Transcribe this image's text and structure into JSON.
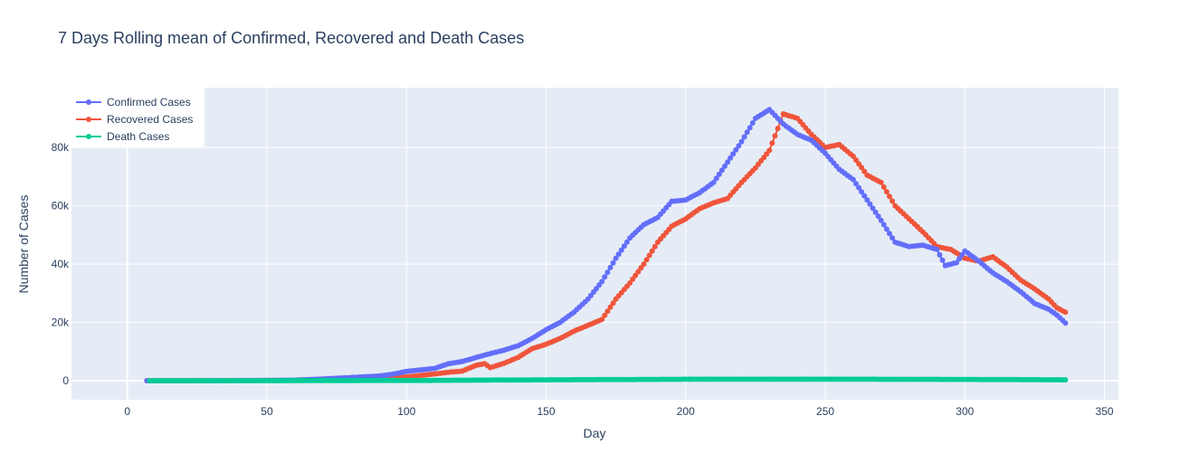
{
  "chart_data": {
    "type": "line",
    "title": "7 Days Rolling mean of Confirmed, Recovered and Death Cases",
    "xlabel": "Day",
    "ylabel": "Number of Cases",
    "xlim": [
      -20,
      355
    ],
    "ylim": [
      -6500,
      100500
    ],
    "x_ticks": [
      0,
      50,
      100,
      150,
      200,
      250,
      300,
      350
    ],
    "x_tick_labels": [
      "0",
      "50",
      "100",
      "150",
      "200",
      "250",
      "300",
      "350"
    ],
    "y_ticks": [
      0,
      20000,
      40000,
      60000,
      80000
    ],
    "y_tick_labels": [
      "0",
      "20k",
      "40k",
      "60k",
      "80k"
    ],
    "grid": true,
    "legend_position": "top-left",
    "background": "#e5ecf6",
    "series": [
      {
        "name": "Confirmed Cases",
        "color": "#636efa",
        "points": [
          [
            7,
            0
          ],
          [
            20,
            20
          ],
          [
            40,
            60
          ],
          [
            60,
            200
          ],
          [
            70,
            600
          ],
          [
            80,
            1100
          ],
          [
            90,
            1600
          ],
          [
            95,
            2200
          ],
          [
            100,
            3200
          ],
          [
            110,
            4200
          ],
          [
            115,
            5800
          ],
          [
            120,
            6600
          ],
          [
            125,
            8000
          ],
          [
            130,
            9300
          ],
          [
            135,
            10500
          ],
          [
            140,
            12000
          ],
          [
            145,
            14500
          ],
          [
            150,
            17500
          ],
          [
            155,
            20000
          ],
          [
            160,
            23500
          ],
          [
            165,
            28000
          ],
          [
            170,
            34000
          ],
          [
            175,
            42000
          ],
          [
            180,
            49000
          ],
          [
            185,
            53500
          ],
          [
            190,
            56000
          ],
          [
            195,
            61500
          ],
          [
            200,
            62000
          ],
          [
            205,
            64500
          ],
          [
            210,
            68000
          ],
          [
            215,
            75000
          ],
          [
            220,
            82000
          ],
          [
            225,
            90000
          ],
          [
            230,
            93000
          ],
          [
            235,
            88000
          ],
          [
            240,
            84500
          ],
          [
            245,
            82500
          ],
          [
            250,
            78000
          ],
          [
            255,
            72500
          ],
          [
            260,
            69000
          ],
          [
            265,
            62000
          ],
          [
            270,
            55000
          ],
          [
            275,
            47500
          ],
          [
            280,
            46000
          ],
          [
            285,
            46500
          ],
          [
            290,
            45000
          ],
          [
            293,
            39500
          ],
          [
            297,
            40500
          ],
          [
            300,
            44500
          ],
          [
            305,
            41000
          ],
          [
            310,
            37000
          ],
          [
            315,
            34000
          ],
          [
            320,
            30500
          ],
          [
            325,
            26500
          ],
          [
            330,
            24500
          ],
          [
            333,
            22500
          ],
          [
            336,
            19800
          ]
        ]
      },
      {
        "name": "Recovered Cases",
        "color": "#ef553b",
        "points": [
          [
            7,
            0
          ],
          [
            20,
            10
          ],
          [
            40,
            40
          ],
          [
            60,
            100
          ],
          [
            70,
            250
          ],
          [
            80,
            500
          ],
          [
            90,
            800
          ],
          [
            100,
            1300
          ],
          [
            110,
            2300
          ],
          [
            115,
            2900
          ],
          [
            120,
            3300
          ],
          [
            125,
            5300
          ],
          [
            128,
            5800
          ],
          [
            130,
            4500
          ],
          [
            135,
            6000
          ],
          [
            140,
            8000
          ],
          [
            145,
            11000
          ],
          [
            150,
            12500
          ],
          [
            155,
            14500
          ],
          [
            160,
            17000
          ],
          [
            165,
            19000
          ],
          [
            170,
            21000
          ],
          [
            175,
            28000
          ],
          [
            180,
            33500
          ],
          [
            185,
            40000
          ],
          [
            190,
            47500
          ],
          [
            195,
            53000
          ],
          [
            200,
            55500
          ],
          [
            205,
            59000
          ],
          [
            210,
            61000
          ],
          [
            215,
            62500
          ],
          [
            220,
            68000
          ],
          [
            225,
            73000
          ],
          [
            230,
            79000
          ],
          [
            235,
            91500
          ],
          [
            240,
            90000
          ],
          [
            245,
            84500
          ],
          [
            250,
            80000
          ],
          [
            255,
            81000
          ],
          [
            260,
            77000
          ],
          [
            265,
            70500
          ],
          [
            270,
            68000
          ],
          [
            275,
            60000
          ],
          [
            280,
            55500
          ],
          [
            285,
            51000
          ],
          [
            290,
            46000
          ],
          [
            295,
            45000
          ],
          [
            300,
            42000
          ],
          [
            305,
            41000
          ],
          [
            310,
            42500
          ],
          [
            315,
            39000
          ],
          [
            320,
            34500
          ],
          [
            325,
            31500
          ],
          [
            330,
            28000
          ],
          [
            333,
            25000
          ],
          [
            336,
            23500
          ]
        ]
      },
      {
        "name": "Death Cases",
        "color": "#00cc96",
        "points": [
          [
            8,
            0
          ],
          [
            50,
            20
          ],
          [
            100,
            80
          ],
          [
            150,
            300
          ],
          [
            200,
            500
          ],
          [
            250,
            520
          ],
          [
            300,
            450
          ],
          [
            336,
            300
          ]
        ]
      }
    ]
  }
}
